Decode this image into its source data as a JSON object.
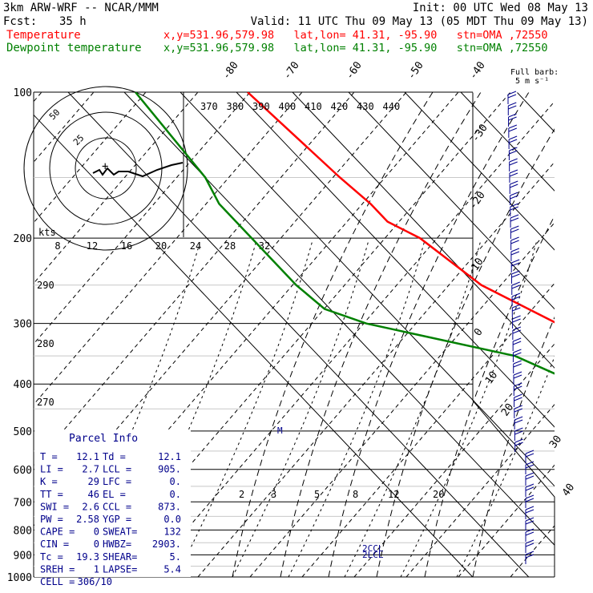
{
  "header": {
    "model": "3km ARW-WRF -- NCAR/MMM",
    "init": "Init: 00 UTC Wed 08 May 13",
    "fcst_label": "Fcst:",
    "fcst_value": "35 h",
    "valid": "Valid: 11 UTC Thu 09 May 13 (05 MDT Thu 09 May 13)",
    "legend": [
      {
        "name": "Temperature",
        "color": "#ff0000",
        "info": "x,y=531.96,579.98   lat,lon= 41.31, -95.90   stn=OMA ,72550"
      },
      {
        "name": "Dewpoint temperature",
        "color": "#008000",
        "info": "x,y=531.96,579.98   lat,lon= 41.31, -95.90   stn=OMA ,72550"
      }
    ]
  },
  "barb_legend": {
    "line1": "Full barb:",
    "line2": "5 m s⁻¹"
  },
  "chart_data": {
    "type": "line",
    "title": "",
    "ylabel": "",
    "xlabel": "",
    "pressure_levels": [
      100,
      200,
      300,
      400,
      500,
      600,
      700,
      800,
      900,
      1000
    ],
    "pressure_labels": [
      "100",
      "200",
      "300",
      "400",
      "500",
      "600",
      "700",
      "800",
      "900",
      "1000"
    ],
    "isotherm_labels": [
      "-80",
      "-70",
      "-60",
      "-50",
      "-40",
      "-30",
      "-20",
      "-10",
      "0",
      "10",
      "20",
      "30",
      "40"
    ],
    "theta_labels": [
      "370",
      "380",
      "390",
      "400",
      "410",
      "420",
      "430",
      "440"
    ],
    "theta_labels_left": [
      "290",
      "280",
      "270"
    ],
    "mixing_ratio_labels": [
      "2",
      "3",
      "5",
      "8",
      "12",
      "20"
    ],
    "hodograph": {
      "units_label": "kts",
      "speed_labels": [
        "8",
        "12",
        "16",
        "20",
        "24",
        "28",
        "32"
      ],
      "ring_labels": [
        "25",
        "50"
      ]
    },
    "series": [
      {
        "name": "Temperature",
        "color": "#ff0000",
        "points": [
          [
            100,
            -58
          ],
          [
            150,
            -56
          ],
          [
            170,
            -55
          ],
          [
            185,
            -55
          ],
          [
            200,
            -52
          ],
          [
            250,
            -49
          ],
          [
            300,
            -42
          ],
          [
            350,
            -34
          ],
          [
            400,
            -25
          ],
          [
            450,
            -14
          ],
          [
            500,
            -8
          ],
          [
            550,
            -3
          ],
          [
            600,
            0
          ],
          [
            650,
            4
          ],
          [
            700,
            6
          ],
          [
            750,
            8
          ],
          [
            800,
            10
          ],
          [
            850,
            11
          ],
          [
            880,
            13
          ],
          [
            920,
            15
          ],
          [
            950,
            12
          ],
          [
            965,
            10
          ]
        ]
      },
      {
        "name": "Dewpoint temperature",
        "color": "#008000",
        "points": [
          [
            100,
            -78
          ],
          [
            150,
            -80
          ],
          [
            170,
            -82
          ],
          [
            200,
            -82
          ],
          [
            250,
            -82
          ],
          [
            280,
            -81
          ],
          [
            300,
            -76
          ],
          [
            350,
            -55
          ],
          [
            380,
            -51
          ],
          [
            420,
            -46
          ],
          [
            450,
            -43
          ],
          [
            500,
            -34
          ],
          [
            550,
            -24
          ],
          [
            600,
            -16
          ],
          [
            650,
            -8
          ],
          [
            700,
            -4
          ],
          [
            750,
            1
          ],
          [
            800,
            5
          ],
          [
            850,
            9
          ],
          [
            880,
            10
          ],
          [
            920,
            9
          ],
          [
            965,
            9
          ]
        ]
      }
    ]
  },
  "parcel_info": {
    "title": "Parcel Info",
    "rows": [
      {
        "l1": "T  =",
        "v1": "12.1",
        "l2": "Td =",
        "v2": "12.1"
      },
      {
        "l1": "LI =",
        "v1": "2.7",
        "l2": "LCL =",
        "v2": "905."
      },
      {
        "l1": "K  =",
        "v1": "29",
        "l2": "LFC =",
        "v2": "0."
      },
      {
        "l1": "TT =",
        "v1": "46",
        "l2": "EL  =",
        "v2": "0."
      },
      {
        "l1": "SWI =",
        "v1": "2.6",
        "l2": "CCL =",
        "v2": "873."
      },
      {
        "l1": "PW =",
        "v1": "2.58",
        "l2": "YGP =",
        "v2": "0.0"
      },
      {
        "l1": "CAPE =",
        "v1": "0",
        "l2": "SWEAT=",
        "v2": "132"
      },
      {
        "l1": "CIN =",
        "v1": "0",
        "l2": "HWBZ=",
        "v2": "2903."
      },
      {
        "l1": "Tc =",
        "v1": "19.3",
        "l2": "SHEAR=",
        "v2": "5."
      },
      {
        "l1": "SREH =",
        "v1": "1",
        "l2": "LAPSE=",
        "v2": "5.4"
      },
      {
        "l1": "CELL =",
        "v1": "306/10",
        "l2": "",
        "v2": ""
      }
    ]
  },
  "markers": {
    "ccl": "CCL",
    "lcl": "LCL",
    "m": "M"
  },
  "colors": {
    "temp": "#ff0000",
    "dewpoint": "#008000",
    "wind": "#00008b",
    "grid": "#000000",
    "mixing": "#000000"
  }
}
